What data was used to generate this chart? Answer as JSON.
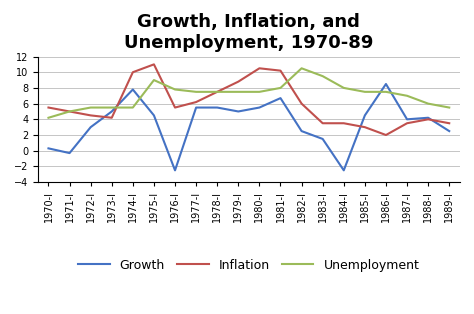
{
  "title": "Growth, Inflation, and\nUnemployment, 1970-89",
  "xlabel_labels": [
    "1970-I",
    "1971-I",
    "1972-I",
    "1973-I",
    "1974-I",
    "1975-I",
    "1976-I",
    "1977-I",
    "1978-I",
    "1979-I",
    "1980-I",
    "1981-I",
    "1982-I",
    "1983-I",
    "1984-I",
    "1985-I",
    "1986-I",
    "1987-I",
    "1988-I",
    "1989-I"
  ],
  "ylim": [
    -4,
    12
  ],
  "yticks": [
    -4,
    -2,
    0,
    2,
    4,
    6,
    8,
    10,
    12
  ],
  "growth": [
    0.3,
    -0.3,
    3.0,
    5.0,
    7.8,
    4.5,
    -2.5,
    5.5,
    5.5,
    5.0,
    5.5,
    6.7,
    2.5,
    1.5,
    -2.5,
    4.5,
    8.5,
    4.0,
    4.2,
    2.5
  ],
  "inflation": [
    5.5,
    5.0,
    4.5,
    4.2,
    10.0,
    11.0,
    5.5,
    6.2,
    7.5,
    8.8,
    10.5,
    10.2,
    6.0,
    3.5,
    3.5,
    3.0,
    2.0,
    3.5,
    4.0,
    3.5
  ],
  "unemployment": [
    4.2,
    5.0,
    5.5,
    5.5,
    5.5,
    9.0,
    7.8,
    7.5,
    7.5,
    7.5,
    7.5,
    8.0,
    10.5,
    9.5,
    8.0,
    7.5,
    7.5,
    7.0,
    6.0,
    5.5
  ],
  "growth_color": "#4472c4",
  "inflation_color": "#c0504d",
  "unemployment_color": "#9bbb59",
  "background_color": "#ffffff",
  "plot_bg_color": "#e8e8e8",
  "title_fontsize": 13,
  "tick_fontsize": 7,
  "legend_fontsize": 9
}
